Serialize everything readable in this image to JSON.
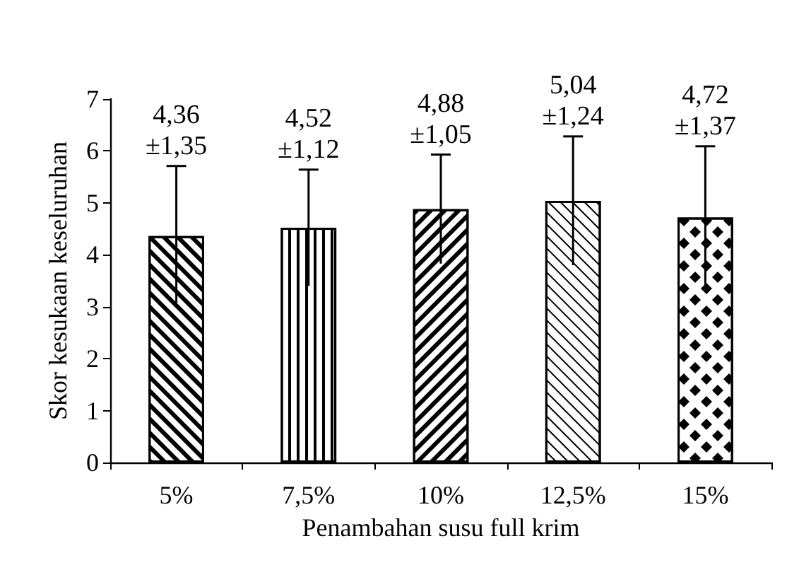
{
  "chart_data": {
    "type": "bar",
    "xlabel": "Penambahan susu full krim",
    "ylabel": "Skor kesukaan keseluruhan",
    "categories": [
      "5%",
      "7,5%",
      "10%",
      "12,5%",
      "15%"
    ],
    "values": [
      4.36,
      4.52,
      4.88,
      5.04,
      4.72
    ],
    "errors": [
      1.35,
      1.12,
      1.05,
      1.24,
      1.37
    ],
    "value_labels": [
      "4,36\n±1,35",
      "4,52\n±1,12",
      "4,88\n±1,05",
      "5,04\n±1,24",
      "4,72\n±1,37"
    ],
    "color": "#000000",
    "ylim": [
      0,
      7
    ],
    "yticks": [
      0,
      1,
      2,
      3,
      4,
      5,
      6,
      7
    ],
    "grid": false
  }
}
